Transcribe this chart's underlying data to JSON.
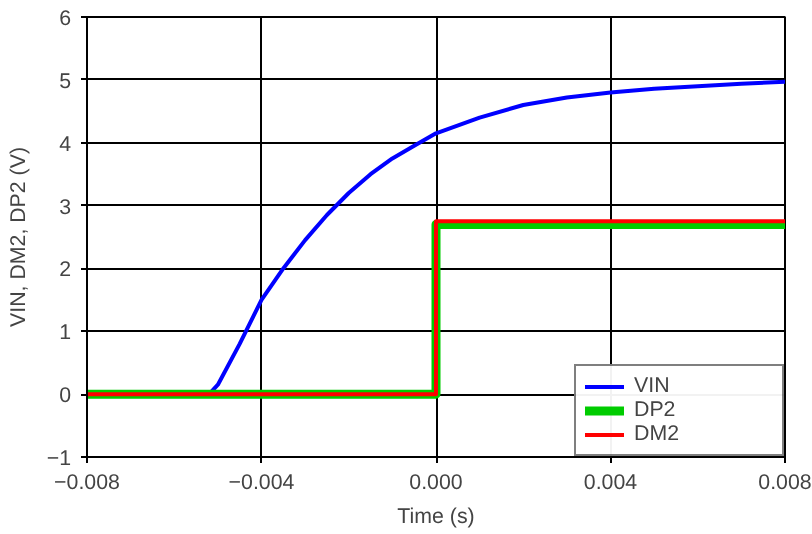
{
  "chart_data": {
    "type": "line",
    "xlabel": "Time (s)",
    "ylabel": "VIN, DM2, DP2 (V)",
    "xlim": [
      -0.008,
      0.008
    ],
    "ylim": [
      -1,
      6
    ],
    "xticks": [
      -0.008,
      -0.004,
      {
        "value": 0,
        "label": "0.000"
      },
      0.004,
      0.008
    ],
    "yticks": [
      -1,
      0,
      1,
      2,
      3,
      4,
      5,
      6
    ],
    "grid": true,
    "legend": "bottom right",
    "line_style": "solid",
    "series": [
      {
        "name": "VIN",
        "color": "#0000ff",
        "x": [
          -0.008,
          -0.0052,
          -0.005,
          -0.0045,
          -0.004,
          -0.0035,
          -0.003,
          -0.0025,
          -0.002,
          -0.0015,
          -0.001,
          -0.0005,
          0,
          0.001,
          0.002,
          0.003,
          0.004,
          0.005,
          0.006,
          0.007,
          0.008
        ],
        "values": [
          0,
          0,
          0.15,
          0.8,
          1.5,
          2.0,
          2.45,
          2.85,
          3.2,
          3.5,
          3.75,
          3.95,
          4.15,
          4.4,
          4.6,
          4.72,
          4.8,
          4.86,
          4.9,
          4.94,
          4.97
        ]
      },
      {
        "name": "DP2",
        "color": "#00cc00",
        "x": [
          -0.008,
          0,
          0,
          0.008
        ],
        "values": [
          0,
          0,
          2.7,
          2.7
        ]
      },
      {
        "name": "DM2",
        "color": "#ff0000",
        "x": [
          -0.008,
          0,
          0,
          0.008
        ],
        "values": [
          0,
          0,
          2.75,
          2.75
        ]
      }
    ]
  }
}
